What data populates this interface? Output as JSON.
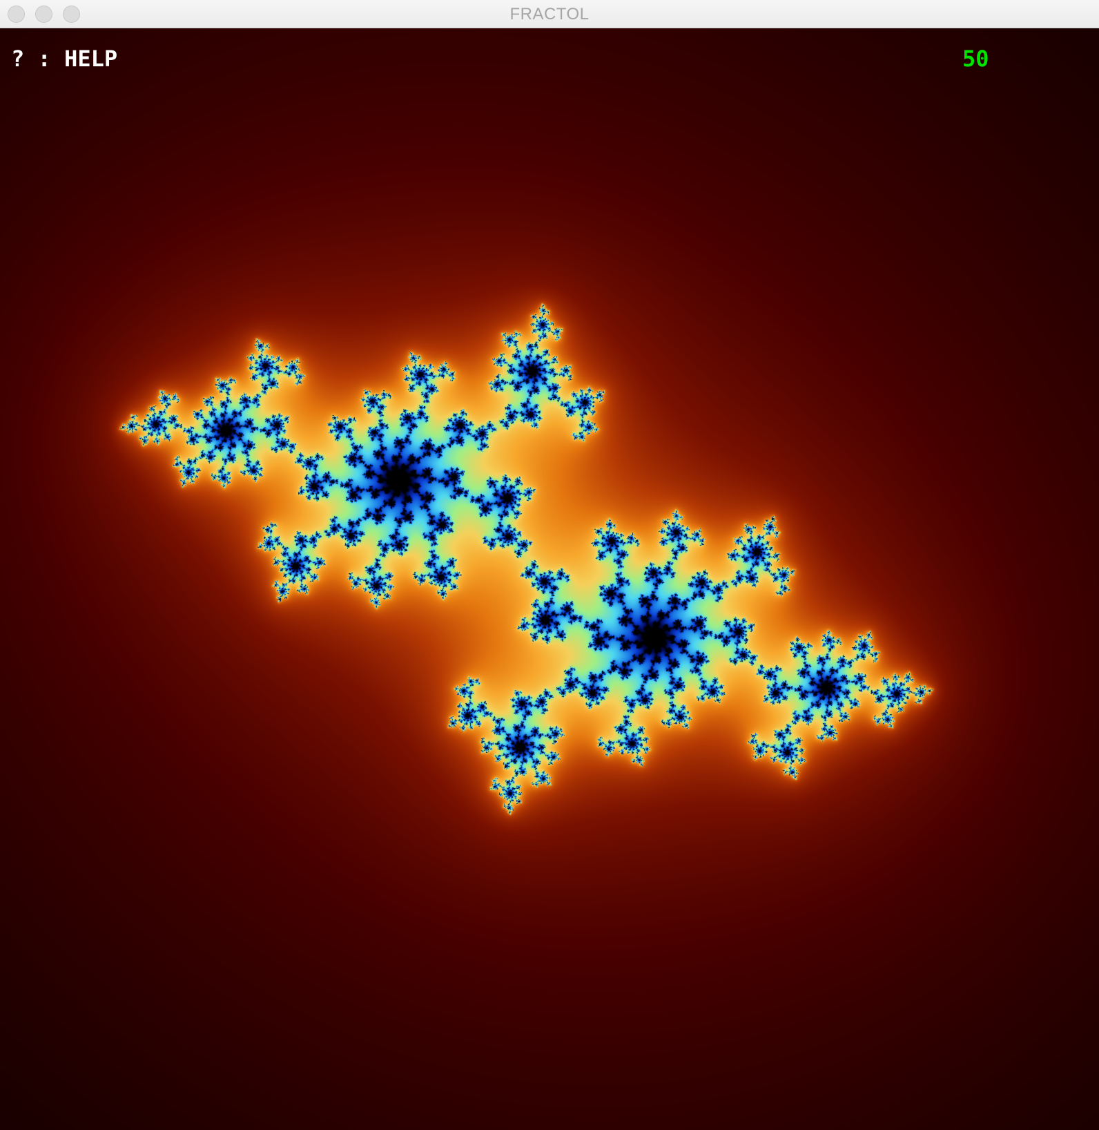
{
  "window": {
    "title": "FRACTOL"
  },
  "overlay": {
    "help_label": "? : HELP",
    "iterations": "50",
    "iterations_color": "#00e600"
  },
  "fractal": {
    "type": "julia",
    "max_iterations": 50,
    "palette": [
      "#000000",
      "#1c0000",
      "#480000",
      "#7a1100",
      "#b53a04",
      "#e4760f",
      "#f7a72c",
      "#f5d05a",
      "#9fef86",
      "#4fd8f0",
      "#1f86ea",
      "#0a3bd1",
      "#020a55",
      "#000000"
    ],
    "colors": {
      "background": "#000000",
      "outer_glow": "#1a0000",
      "core": "#000000"
    }
  }
}
